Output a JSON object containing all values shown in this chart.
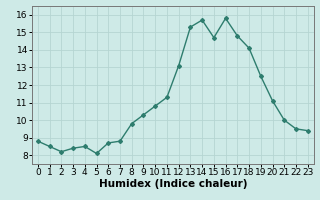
{
  "x": [
    0,
    1,
    2,
    3,
    4,
    5,
    6,
    7,
    8,
    9,
    10,
    11,
    12,
    13,
    14,
    15,
    16,
    17,
    18,
    19,
    20,
    21,
    22,
    23
  ],
  "y": [
    8.8,
    8.5,
    8.2,
    8.4,
    8.5,
    8.1,
    8.7,
    8.8,
    9.8,
    10.3,
    10.8,
    11.3,
    13.1,
    15.3,
    15.7,
    14.7,
    15.8,
    14.8,
    14.1,
    12.5,
    11.1,
    10.0,
    9.5,
    9.4
  ],
  "xlabel": "Humidex (Indice chaleur)",
  "xlim": [
    -0.5,
    23.5
  ],
  "ylim": [
    7.5,
    16.5
  ],
  "yticks": [
    8,
    9,
    10,
    11,
    12,
    13,
    14,
    15,
    16
  ],
  "xticks": [
    0,
    1,
    2,
    3,
    4,
    5,
    6,
    7,
    8,
    9,
    10,
    11,
    12,
    13,
    14,
    15,
    16,
    17,
    18,
    19,
    20,
    21,
    22,
    23
  ],
  "line_color": "#2e7d6e",
  "marker": "D",
  "marker_size": 2.0,
  "bg_color": "#ceeae7",
  "grid_color": "#b5d5d2",
  "tick_label_fontsize": 6.5,
  "xlabel_fontsize": 7.5,
  "line_width": 1.0
}
